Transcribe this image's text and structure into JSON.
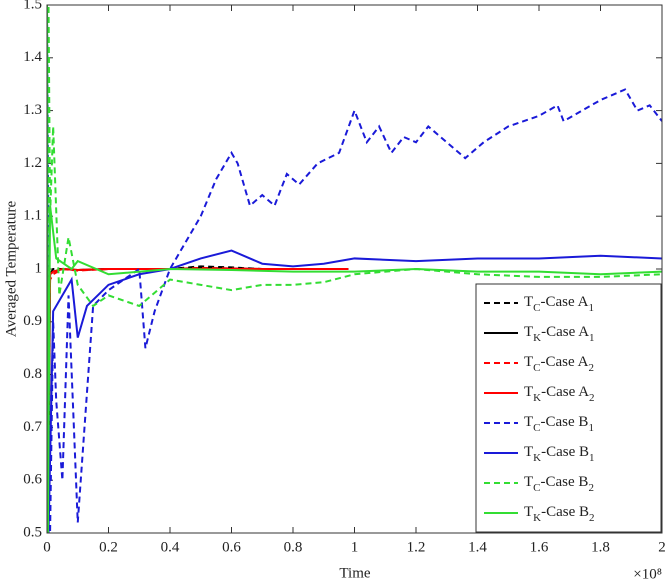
{
  "chart_data": {
    "type": "line",
    "x_label": "Time",
    "y_label": "Averaged Temperature",
    "x_scale_note": "×10⁸",
    "xlim": [
      0,
      2
    ],
    "xticks": [
      0,
      0.2,
      0.4,
      0.6,
      0.8,
      1,
      1.2,
      1.4,
      1.6,
      1.8,
      2
    ],
    "ylim": [
      0.5,
      1.5
    ],
    "yticks": [
      0.5,
      0.6,
      0.7,
      0.8,
      0.9,
      1,
      1.1,
      1.2,
      1.3,
      1.4,
      1.5
    ],
    "legend": "lower right",
    "series": [
      {
        "name": "TC-Case A1",
        "color": "#000000",
        "style": "dashed",
        "x": [
          0,
          0.01,
          0.02,
          0.05,
          0.1,
          0.2,
          0.3,
          0.4,
          0.5,
          0.6,
          0.7,
          0.8,
          0.9,
          0.98
        ],
        "values": [
          0.5,
          0.99,
          1.0,
          1.0,
          0.998,
          1.0,
          1.0,
          1.0,
          1.005,
          1.003,
          1.0,
          1.0,
          1.0,
          1.0
        ]
      },
      {
        "name": "TK-Case A1",
        "color": "#000000",
        "style": "solid",
        "x": [
          0,
          0.004,
          0.01,
          0.02,
          0.05,
          0.1,
          0.2,
          0.3,
          0.4,
          0.5,
          0.6,
          0.7,
          0.8,
          0.9,
          0.98
        ],
        "values": [
          1.0,
          0.5,
          0.99,
          0.995,
          1.0,
          0.998,
          1.0,
          1.0,
          1.0,
          1.002,
          1.001,
          1.0,
          1.0,
          1.0,
          1.0
        ]
      },
      {
        "name": "TC-Case A2",
        "color": "#ff0000",
        "style": "dashed",
        "x": [
          0,
          0.01,
          0.02,
          0.05,
          0.1,
          0.2,
          0.3,
          0.4,
          0.5,
          0.6,
          0.7,
          0.8,
          0.9,
          0.98
        ],
        "values": [
          0.5,
          0.98,
          0.99,
          1.0,
          0.997,
          1.0,
          1.0,
          1.0,
          1.002,
          1.001,
          1.0,
          1.0,
          1.0,
          1.0
        ]
      },
      {
        "name": "TK-Case A2",
        "color": "#ff0000",
        "style": "solid",
        "x": [
          0,
          0.01,
          0.02,
          0.05,
          0.1,
          0.2,
          0.3,
          0.4,
          0.5,
          0.6,
          0.7,
          0.8,
          0.9,
          0.98
        ],
        "values": [
          0.5,
          0.99,
          0.995,
          1.0,
          0.998,
          1.0,
          1.0,
          1.0,
          1.0,
          1.0,
          1.0,
          1.0,
          1.0,
          1.0
        ]
      },
      {
        "name": "TC-Case B1",
        "color": "#1a1ad8",
        "style": "dashed",
        "x": [
          0,
          0.01,
          0.02,
          0.03,
          0.05,
          0.07,
          0.1,
          0.15,
          0.2,
          0.3,
          0.32,
          0.35,
          0.4,
          0.45,
          0.5,
          0.55,
          0.6,
          0.62,
          0.66,
          0.7,
          0.74,
          0.78,
          0.82,
          0.88,
          0.95,
          1.0,
          1.04,
          1.08,
          1.12,
          1.16,
          1.2,
          1.24,
          1.3,
          1.36,
          1.42,
          1.5,
          1.6,
          1.66,
          1.68,
          1.74,
          1.8,
          1.88,
          1.92,
          1.96,
          2.0
        ],
        "values": [
          1.5,
          0.5,
          0.9,
          0.75,
          0.6,
          0.95,
          0.52,
          0.93,
          0.96,
          1.0,
          0.85,
          0.92,
          1.0,
          1.05,
          1.1,
          1.17,
          1.22,
          1.2,
          1.12,
          1.14,
          1.12,
          1.18,
          1.16,
          1.2,
          1.22,
          1.3,
          1.24,
          1.27,
          1.22,
          1.25,
          1.24,
          1.27,
          1.24,
          1.21,
          1.24,
          1.27,
          1.29,
          1.31,
          1.28,
          1.3,
          1.32,
          1.34,
          1.3,
          1.31,
          1.28
        ]
      },
      {
        "name": "TK-Case B1",
        "color": "#1a1ad8",
        "style": "solid",
        "x": [
          0,
          0.005,
          0.02,
          0.05,
          0.08,
          0.1,
          0.13,
          0.2,
          0.3,
          0.4,
          0.5,
          0.6,
          0.7,
          0.8,
          0.9,
          1.0,
          1.2,
          1.4,
          1.6,
          1.8,
          2.0
        ],
        "values": [
          1.5,
          0.5,
          0.92,
          0.95,
          0.98,
          0.87,
          0.93,
          0.97,
          0.99,
          1.0,
          1.02,
          1.035,
          1.01,
          1.005,
          1.01,
          1.02,
          1.015,
          1.02,
          1.02,
          1.025,
          1.02
        ]
      },
      {
        "name": "TC-Case B2",
        "color": "#33dd33",
        "style": "dashed",
        "x": [
          0,
          0.005,
          0.01,
          0.02,
          0.04,
          0.07,
          0.1,
          0.15,
          0.2,
          0.3,
          0.4,
          0.5,
          0.6,
          0.7,
          0.8,
          0.9,
          1.0,
          1.2,
          1.4,
          1.6,
          1.8,
          2.0
        ],
        "values": [
          0.5,
          1.5,
          1.1,
          1.27,
          0.95,
          1.06,
          0.97,
          0.93,
          0.95,
          0.93,
          0.98,
          0.97,
          0.96,
          0.97,
          0.97,
          0.975,
          0.99,
          1.0,
          0.99,
          0.985,
          0.985,
          0.99
        ]
      },
      {
        "name": "TK-Case B2",
        "color": "#33dd33",
        "style": "solid",
        "x": [
          0,
          0.003,
          0.01,
          0.03,
          0.08,
          0.1,
          0.2,
          0.4,
          0.6,
          0.8,
          1.0,
          1.2,
          1.4,
          1.6,
          1.8,
          2.0
        ],
        "values": [
          1.5,
          0.5,
          1.12,
          1.02,
          1.0,
          1.015,
          0.99,
          1.0,
          0.998,
          0.995,
          0.995,
          1.0,
          0.995,
          0.995,
          0.99,
          0.995
        ]
      }
    ]
  }
}
